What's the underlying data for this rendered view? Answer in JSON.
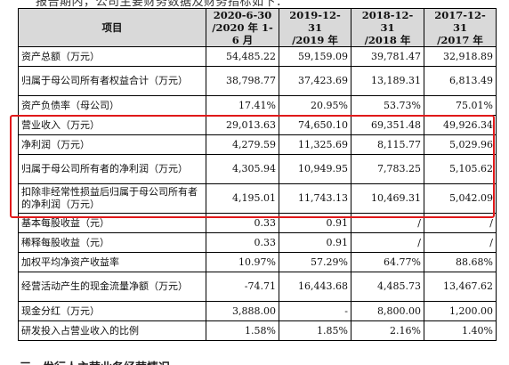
{
  "top_cut_text": "报告期内，公司主要财务数据及财务指标如下：",
  "bottom_cut_text": "三、发行人主营业务经营情况",
  "table": {
    "header": {
      "item": "项目",
      "periods": [
        {
          "line1": "2020-6-30",
          "line2": "/2020 年 1-6 月"
        },
        {
          "line1": "2019-12-31",
          "line2": "/2019 年"
        },
        {
          "line1": "2018-12-31",
          "line2": "/2018 年"
        },
        {
          "line1": "2017-12-31",
          "line2": "/2017 年"
        }
      ]
    },
    "rows": [
      {
        "label": "资产总额（万元）",
        "values": [
          "54,485.22",
          "59,159.09",
          "39,781.47",
          "32,918.89"
        ]
      },
      {
        "label": "归属于母公司所有者权益合计（万元）",
        "values": [
          "38,798.77",
          "37,423.69",
          "13,189.31",
          "6,813.49"
        ]
      },
      {
        "label": "资产负债率（母公司）",
        "values": [
          "17.41%",
          "20.95%",
          "53.73%",
          "75.01%"
        ]
      },
      {
        "label": "营业收入（万元）",
        "values": [
          "29,013.63",
          "74,650.10",
          "69,351.48",
          "49,926.34"
        ]
      },
      {
        "label": "净利润（万元）",
        "values": [
          "4,279.59",
          "11,325.69",
          "8,115.77",
          "5,029.96"
        ]
      },
      {
        "label": "归属于母公司所有者的净利润（万元）",
        "values": [
          "4,305.94",
          "10,949.95",
          "7,783.25",
          "5,105.62"
        ]
      },
      {
        "label": "扣除非经常性损益后归属于母公司所有者的净利润（万元）",
        "values": [
          "4,195.01",
          "11,743.13",
          "10,469.31",
          "5,042.09"
        ]
      },
      {
        "label": "基本每股收益（元）",
        "values": [
          "0.33",
          "0.91",
          "/",
          "/"
        ]
      },
      {
        "label": "稀释每股收益（元）",
        "values": [
          "0.33",
          "0.91",
          "/",
          "/"
        ]
      },
      {
        "label": "加权平均净资产收益率",
        "values": [
          "10.97%",
          "57.29%",
          "64.77%",
          "88.68%"
        ]
      },
      {
        "label": "经营活动产生的现金流量净额（万元）",
        "values": [
          "-74.71",
          "16,443.68",
          "4,485.73",
          "13,467.62"
        ]
      },
      {
        "label": "现金分红（万元）",
        "values": [
          "3,888.00",
          "-",
          "8,800.00",
          "1,200.00"
        ]
      },
      {
        "label": "研发投入占营业收入的比例",
        "values": [
          "1.58%",
          "1.85%",
          "2.16%",
          "1.40%"
        ]
      }
    ]
  },
  "colors": {
    "header_bg": "#d9d9d9",
    "highlight": "#e0191a"
  }
}
